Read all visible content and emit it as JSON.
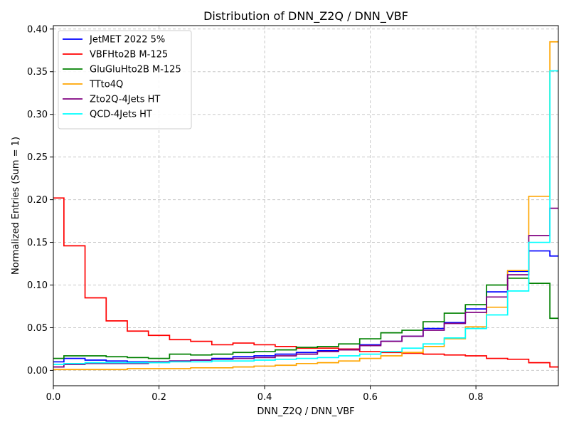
{
  "chart_data": {
    "type": "line",
    "title": "Distribution of DNN_Z2Q / DNN_VBF",
    "xlabel": "DNN_Z2Q / DNN_VBF",
    "ylabel": "Normalized Entries (Sum = 1)",
    "xlim": [
      0.0,
      0.956
    ],
    "ylim": [
      -0.018,
      0.404
    ],
    "x_ticks": [
      "0.0",
      "0.2",
      "0.4",
      "0.6",
      "0.8"
    ],
    "y_ticks": [
      "0.00",
      "0.05",
      "0.10",
      "0.15",
      "0.20",
      "0.25",
      "0.30",
      "0.35",
      "0.40"
    ],
    "grid": true,
    "legend_position": "top-left",
    "bin_edges": [
      0.0,
      0.02,
      0.06,
      0.1,
      0.14,
      0.18,
      0.22,
      0.26,
      0.3,
      0.34,
      0.38,
      0.42,
      0.46,
      0.5,
      0.54,
      0.58,
      0.62,
      0.66,
      0.7,
      0.74,
      0.78,
      0.82,
      0.86,
      0.9,
      0.94,
      0.956
    ],
    "series": [
      {
        "name": "JetMET 2022 5%",
        "color": "#0000ff",
        "values": [
          0.01,
          0.014,
          0.012,
          0.011,
          0.01,
          0.01,
          0.011,
          0.012,
          0.014,
          0.016,
          0.017,
          0.019,
          0.021,
          0.023,
          0.025,
          0.03,
          0.034,
          0.04,
          0.049,
          0.056,
          0.072,
          0.092,
          0.116,
          0.14,
          0.134
        ]
      },
      {
        "name": "VBFHto2B M-125",
        "color": "#ff0000",
        "values": [
          0.202,
          0.146,
          0.085,
          0.058,
          0.046,
          0.041,
          0.036,
          0.034,
          0.03,
          0.032,
          0.03,
          0.028,
          0.026,
          0.026,
          0.025,
          0.022,
          0.021,
          0.02,
          0.019,
          0.018,
          0.017,
          0.014,
          0.013,
          0.009,
          0.004
        ]
      },
      {
        "name": "GluGluHto2B M-125",
        "color": "#008000",
        "values": [
          0.014,
          0.017,
          0.017,
          0.016,
          0.015,
          0.014,
          0.019,
          0.018,
          0.019,
          0.021,
          0.022,
          0.024,
          0.027,
          0.028,
          0.031,
          0.037,
          0.044,
          0.047,
          0.057,
          0.067,
          0.077,
          0.1,
          0.108,
          0.102,
          0.061
        ]
      },
      {
        "name": "TTto4Q",
        "color": "#ffa500",
        "values": [
          0.001,
          0.001,
          0.001,
          0.001,
          0.002,
          0.002,
          0.002,
          0.003,
          0.003,
          0.004,
          0.005,
          0.006,
          0.008,
          0.009,
          0.011,
          0.014,
          0.017,
          0.021,
          0.028,
          0.037,
          0.051,
          0.074,
          0.117,
          0.204,
          0.385
        ]
      },
      {
        "name": "Zto2Q-4Jets HT",
        "color": "#800080",
        "values": [
          0.004,
          0.007,
          0.008,
          0.008,
          0.008,
          0.01,
          0.011,
          0.012,
          0.013,
          0.014,
          0.015,
          0.017,
          0.019,
          0.022,
          0.024,
          0.029,
          0.034,
          0.04,
          0.047,
          0.055,
          0.068,
          0.086,
          0.112,
          0.158,
          0.19
        ]
      },
      {
        "name": "QCD-4Jets HT",
        "color": "#00ffff",
        "values": [
          0.007,
          0.008,
          0.009,
          0.009,
          0.009,
          0.009,
          0.01,
          0.01,
          0.011,
          0.011,
          0.012,
          0.013,
          0.014,
          0.015,
          0.017,
          0.019,
          0.022,
          0.026,
          0.031,
          0.038,
          0.049,
          0.065,
          0.093,
          0.15,
          0.351
        ]
      }
    ]
  }
}
